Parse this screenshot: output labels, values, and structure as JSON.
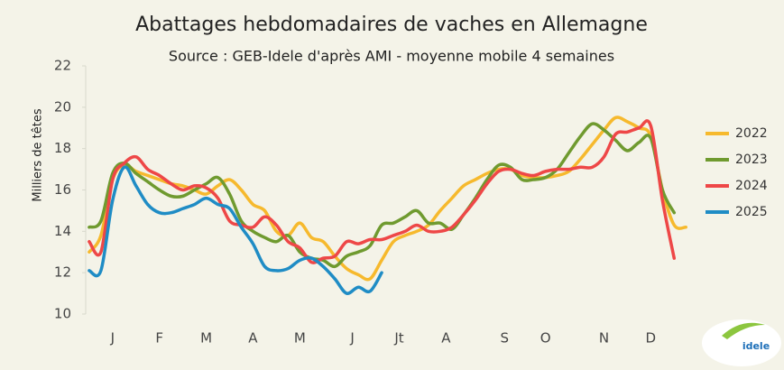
{
  "chart_data": {
    "type": "line",
    "title": "Abattages hebdomadaires de vaches en Allemagne",
    "subtitle": "Source : GEB-Idele d'après AMI - moyenne mobile 4 semaines",
    "y_label": "Milliers de têtes",
    "logo_text": "idele",
    "x": [
      1,
      2,
      3,
      4,
      5,
      6,
      7,
      8,
      9,
      10,
      11,
      12,
      13,
      14,
      15,
      16,
      17,
      18,
      19,
      20,
      21,
      22,
      23,
      24,
      25,
      26,
      27,
      28,
      29,
      30,
      31,
      32,
      33,
      34,
      35,
      36,
      37,
      38,
      39,
      40,
      41,
      42,
      43,
      44,
      45,
      46,
      47,
      48,
      49,
      50,
      51,
      52
    ],
    "xlim": [
      0.7,
      52.6
    ],
    "xticks": [
      {
        "value": 3,
        "label": "J"
      },
      {
        "value": 7,
        "label": "F"
      },
      {
        "value": 11,
        "label": "M"
      },
      {
        "value": 15,
        "label": "A"
      },
      {
        "value": 19,
        "label": "M"
      },
      {
        "value": 23.5,
        "label": "J"
      },
      {
        "value": 27.5,
        "label": "Jt"
      },
      {
        "value": 31.5,
        "label": "A"
      },
      {
        "value": 36.5,
        "label": "S"
      },
      {
        "value": 40,
        "label": "O"
      },
      {
        "value": 45,
        "label": "N"
      },
      {
        "value": 49,
        "label": "D"
      }
    ],
    "ylim": [
      10,
      22
    ],
    "yticks": [
      10,
      12,
      14,
      16,
      18,
      20,
      22
    ],
    "grid": false,
    "legend": "right",
    "series": [
      {
        "name": "2022",
        "color": "#f6b92d",
        "values": [
          13.0,
          13.8,
          16.5,
          17.2,
          16.9,
          16.7,
          16.5,
          16.3,
          16.2,
          16.0,
          15.8,
          16.2,
          16.5,
          16.0,
          15.3,
          15.0,
          14.0,
          13.8,
          14.4,
          13.7,
          13.5,
          12.8,
          12.2,
          11.9,
          11.7,
          12.6,
          13.5,
          13.8,
          14.0,
          14.3,
          15.0,
          15.6,
          16.2,
          16.5,
          16.8,
          17.0,
          17.0,
          16.7,
          16.6,
          16.6,
          16.7,
          16.9,
          17.5,
          18.2,
          18.9,
          19.5,
          19.3,
          19.0,
          18.6,
          16.0,
          14.3,
          14.2
        ]
      },
      {
        "name": "2023",
        "color": "#6f9a2f",
        "values": [
          14.2,
          14.5,
          16.8,
          17.3,
          16.8,
          16.4,
          16.0,
          15.7,
          15.7,
          16.0,
          16.3,
          16.6,
          15.8,
          14.5,
          14.0,
          13.7,
          13.5,
          13.8,
          13.0,
          12.7,
          12.6,
          12.3,
          12.8,
          13.0,
          13.3,
          14.3,
          14.4,
          14.7,
          15.0,
          14.4,
          14.4,
          14.1,
          14.8,
          15.6,
          16.5,
          17.2,
          17.1,
          16.5,
          16.5,
          16.6,
          17.0,
          17.8,
          18.6,
          19.2,
          18.9,
          18.4,
          17.9,
          18.3,
          18.5,
          16.0,
          14.9,
          null
        ]
      },
      {
        "name": "2024",
        "color": "#ee4747",
        "values": [
          13.5,
          13.0,
          16.5,
          17.3,
          17.6,
          17.0,
          16.7,
          16.3,
          16.0,
          16.2,
          16.1,
          15.6,
          14.5,
          14.3,
          14.2,
          14.7,
          14.3,
          13.5,
          13.2,
          12.5,
          12.7,
          12.8,
          13.5,
          13.4,
          13.6,
          13.6,
          13.8,
          14.0,
          14.3,
          14.0,
          14.0,
          14.2,
          14.8,
          15.5,
          16.3,
          16.9,
          17.0,
          16.8,
          16.7,
          16.9,
          17.0,
          17.0,
          17.1,
          17.1,
          17.6,
          18.7,
          18.8,
          19.0,
          19.1,
          15.5,
          12.7,
          null
        ]
      },
      {
        "name": "2025",
        "color": "#1f8cc5",
        "values": [
          12.1,
          12.1,
          15.5,
          17.1,
          16.2,
          15.3,
          14.9,
          14.9,
          15.1,
          15.3,
          15.6,
          15.3,
          15.1,
          14.2,
          13.4,
          12.3,
          12.1,
          12.2,
          12.6,
          12.7,
          12.3,
          11.7,
          11.0,
          11.3,
          11.1,
          12.0,
          null,
          null,
          null,
          null,
          null,
          null,
          null,
          null,
          null,
          null,
          null,
          null,
          null,
          null,
          null,
          null,
          null,
          null,
          null,
          null,
          null,
          null,
          null,
          null,
          null,
          null
        ]
      }
    ]
  }
}
